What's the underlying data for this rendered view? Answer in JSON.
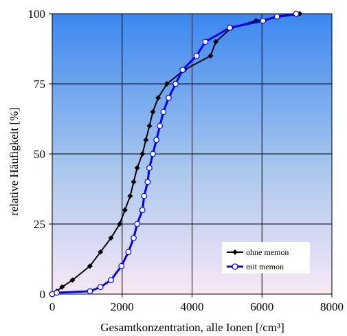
{
  "chart_data": {
    "type": "line",
    "xlabel": "Gesamtkonzentration, alle Ionen [/cm³]",
    "ylabel": "relative Häufigkeit [%]",
    "xlim": [
      0,
      8000
    ],
    "ylim": [
      0,
      100
    ],
    "xticks": [
      0,
      2000,
      4000,
      6000,
      8000
    ],
    "yticks": [
      0,
      25,
      50,
      75,
      100
    ],
    "grid": "horizontal and vertical major gridlines",
    "legend_position": "bottom-right",
    "background": "vertical gradient, blue at top to pale pink at bottom",
    "series": [
      {
        "name": "ohne memon",
        "color": "#000000",
        "marker": "filled-diamond",
        "points": [
          [
            0,
            0
          ],
          [
            130,
            1
          ],
          [
            280,
            2.5
          ],
          [
            580,
            5
          ],
          [
            1080,
            10
          ],
          [
            1380,
            15
          ],
          [
            1680,
            20
          ],
          [
            1930,
            25
          ],
          [
            2080,
            30
          ],
          [
            2230,
            35
          ],
          [
            2330,
            40
          ],
          [
            2430,
            45
          ],
          [
            2580,
            50
          ],
          [
            2680,
            55
          ],
          [
            2780,
            60
          ],
          [
            2880,
            65
          ],
          [
            3030,
            70
          ],
          [
            3280,
            75
          ],
          [
            3780,
            80
          ],
          [
            4530,
            85
          ],
          [
            4680,
            90
          ],
          [
            5130,
            95
          ],
          [
            5830,
            97.5
          ],
          [
            7080,
            100
          ]
        ]
      },
      {
        "name": "mit memon",
        "color": "#0000ff",
        "marker": "open-circle",
        "points": [
          [
            0,
            0
          ],
          [
            130,
            0.5
          ],
          [
            1080,
            1
          ],
          [
            1380,
            2.5
          ],
          [
            1680,
            5
          ],
          [
            1980,
            10
          ],
          [
            2180,
            15
          ],
          [
            2330,
            20
          ],
          [
            2430,
            25
          ],
          [
            2580,
            30
          ],
          [
            2630,
            35
          ],
          [
            2730,
            40
          ],
          [
            2780,
            45
          ],
          [
            2880,
            50
          ],
          [
            2980,
            55
          ],
          [
            3080,
            60
          ],
          [
            3180,
            65
          ],
          [
            3330,
            70
          ],
          [
            3530,
            75
          ],
          [
            3730,
            80
          ],
          [
            4130,
            85
          ],
          [
            4380,
            90
          ],
          [
            5080,
            95
          ],
          [
            6030,
            97.5
          ],
          [
            6430,
            99
          ],
          [
            6980,
            100
          ]
        ]
      }
    ]
  }
}
